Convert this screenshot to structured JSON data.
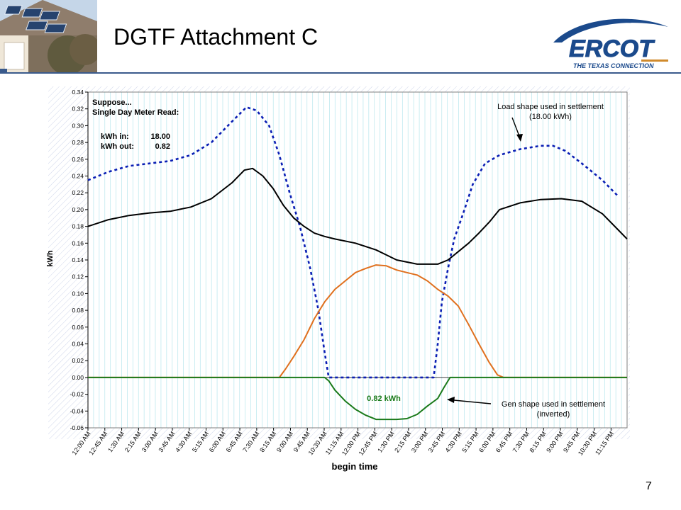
{
  "slide": {
    "title": "DGTF Attachment C",
    "page_number": "7"
  },
  "logo": {
    "name": "ERCOT",
    "tagline": "THE TEXAS CONNECTION"
  },
  "colors": {
    "load_settlement": "#0a1eb4",
    "load_actual": "#000000",
    "generation": "#e0701e",
    "gen_settlement": "#1a7a1a",
    "grid": "#bfe9ef",
    "rule": "#3a5a8c"
  },
  "chart_data": {
    "type": "line",
    "title": "",
    "xlabel": "begin time",
    "ylabel": "kWh",
    "ylim": [
      -0.06,
      0.34
    ],
    "ytick_step": 0.02,
    "grid": "vertical",
    "x_labels": [
      "12:00 AM",
      "12:45 AM",
      "1:30 AM",
      "2:15 AM",
      "3:00 AM",
      "3:45 AM",
      "4:30 AM",
      "5:15 AM",
      "6:00 AM",
      "6:45 AM",
      "7:30 AM",
      "8:15 AM",
      "9:00 AM",
      "9:45 AM",
      "10:30 AM",
      "11:15 AM",
      "12:00 PM",
      "12:45 PM",
      "1:30 PM",
      "2:15 PM",
      "3:00 PM",
      "3:45 PM",
      "4:30 PM",
      "5:15 PM",
      "6:00 PM",
      "6:45 PM",
      "7:30 PM",
      "8:15 PM",
      "9:00 PM",
      "9:45 PM",
      "10:30 PM",
      "11:15 PM"
    ],
    "series": [
      {
        "key": "load_settlement",
        "style": "dashed",
        "points": [
          [
            0,
            0.235
          ],
          [
            1,
            0.245
          ],
          [
            2,
            0.252
          ],
          [
            3,
            0.255
          ],
          [
            4,
            0.258
          ],
          [
            5,
            0.265
          ],
          [
            6,
            0.28
          ],
          [
            7,
            0.305
          ],
          [
            7.7,
            0.322
          ],
          [
            8.2,
            0.318
          ],
          [
            8.8,
            0.3
          ],
          [
            9.3,
            0.265
          ],
          [
            9.8,
            0.22
          ],
          [
            10.3,
            0.18
          ],
          [
            10.8,
            0.13
          ],
          [
            11.2,
            0.08
          ],
          [
            11.5,
            0.03
          ],
          [
            11.7,
            0.0
          ],
          [
            12,
            0.0
          ],
          [
            13,
            0.0
          ],
          [
            14,
            0.0
          ],
          [
            15,
            0.0
          ],
          [
            16,
            0.0
          ],
          [
            16.8,
            0.0
          ],
          [
            17,
            0.04
          ],
          [
            17.2,
            0.09
          ],
          [
            17.5,
            0.13
          ],
          [
            17.8,
            0.165
          ],
          [
            18.3,
            0.2
          ],
          [
            18.7,
            0.23
          ],
          [
            19.3,
            0.255
          ],
          [
            20,
            0.265
          ],
          [
            21,
            0.272
          ],
          [
            22,
            0.276
          ],
          [
            22.6,
            0.276
          ],
          [
            23.2,
            0.27
          ],
          [
            24,
            0.255
          ],
          [
            25,
            0.235
          ],
          [
            25.8,
            0.215
          ]
        ]
      },
      {
        "key": "load_actual",
        "style": "solid",
        "points": [
          [
            0,
            0.18
          ],
          [
            1,
            0.188
          ],
          [
            2,
            0.193
          ],
          [
            3,
            0.196
          ],
          [
            4,
            0.198
          ],
          [
            5,
            0.203
          ],
          [
            6,
            0.213
          ],
          [
            7,
            0.232
          ],
          [
            7.6,
            0.247
          ],
          [
            8,
            0.249
          ],
          [
            8.5,
            0.24
          ],
          [
            9,
            0.225
          ],
          [
            9.5,
            0.205
          ],
          [
            10,
            0.19
          ],
          [
            10.5,
            0.18
          ],
          [
            11,
            0.172
          ],
          [
            11.5,
            0.168
          ],
          [
            12,
            0.165
          ],
          [
            13,
            0.16
          ],
          [
            14,
            0.152
          ],
          [
            14.5,
            0.146
          ],
          [
            15,
            0.14
          ],
          [
            16,
            0.135
          ],
          [
            17,
            0.135
          ],
          [
            17.5,
            0.14
          ],
          [
            18,
            0.15
          ],
          [
            18.5,
            0.16
          ],
          [
            19,
            0.172
          ],
          [
            19.5,
            0.185
          ],
          [
            20,
            0.2
          ],
          [
            21,
            0.208
          ],
          [
            22,
            0.212
          ],
          [
            23,
            0.213
          ],
          [
            24,
            0.21
          ],
          [
            25,
            0.195
          ],
          [
            25.8,
            0.175
          ],
          [
            26.2,
            0.165
          ]
        ]
      },
      {
        "key": "generation",
        "style": "solid",
        "points": [
          [
            0,
            0.0
          ],
          [
            9,
            0.0
          ],
          [
            9.3,
            0.0
          ],
          [
            9.6,
            0.01
          ],
          [
            10,
            0.025
          ],
          [
            10.5,
            0.045
          ],
          [
            11,
            0.07
          ],
          [
            11.5,
            0.09
          ],
          [
            12,
            0.105
          ],
          [
            12.5,
            0.115
          ],
          [
            13,
            0.125
          ],
          [
            13.5,
            0.13
          ],
          [
            14,
            0.134
          ],
          [
            14.5,
            0.133
          ],
          [
            15,
            0.128
          ],
          [
            15.5,
            0.125
          ],
          [
            16,
            0.122
          ],
          [
            16.5,
            0.115
          ],
          [
            17,
            0.105
          ],
          [
            17.5,
            0.097
          ],
          [
            18,
            0.085
          ],
          [
            18.5,
            0.063
          ],
          [
            19,
            0.04
          ],
          [
            19.5,
            0.018
          ],
          [
            19.9,
            0.003
          ],
          [
            20.2,
            0.0
          ],
          [
            26.2,
            0.0
          ]
        ]
      },
      {
        "key": "gen_settlement",
        "style": "solid",
        "points": [
          [
            0,
            0.0
          ],
          [
            11.5,
            0.0
          ],
          [
            11.7,
            -0.004
          ],
          [
            12,
            -0.015
          ],
          [
            12.5,
            -0.028
          ],
          [
            13,
            -0.038
          ],
          [
            13.5,
            -0.045
          ],
          [
            14,
            -0.05
          ],
          [
            15,
            -0.05
          ],
          [
            15.5,
            -0.049
          ],
          [
            16,
            -0.044
          ],
          [
            16.5,
            -0.034
          ],
          [
            17,
            -0.025
          ],
          [
            17.3,
            -0.012
          ],
          [
            17.6,
            0.0
          ],
          [
            26.2,
            0.0
          ]
        ]
      }
    ],
    "annotations": [
      {
        "name": "suppose-note",
        "lines": [
          "Suppose...",
          "Single Day Meter Read:"
        ]
      },
      {
        "name": "kwh-in-label",
        "label": "kWh in:",
        "value": "18.00"
      },
      {
        "name": "kwh-out-label",
        "label": "kWh out:",
        "value": "0.82"
      },
      {
        "name": "load-shape-note",
        "lines": [
          "Load shape used in settlement",
          "(18.00 kWh)"
        ]
      },
      {
        "name": "gen-shape-note",
        "lines": [
          "Gen shape used in settlement",
          "(inverted)"
        ]
      },
      {
        "name": "gen-value-label",
        "text": "0.82 kWh"
      }
    ]
  }
}
